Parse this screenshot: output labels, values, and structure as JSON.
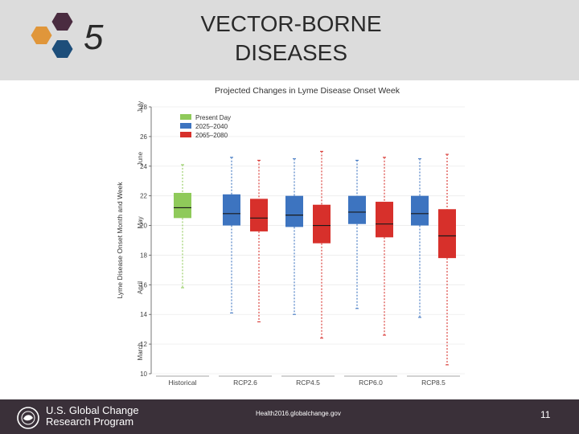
{
  "header": {
    "section_number": "5",
    "title_line1": "VECTOR-BORNE",
    "title_line2": "DISEASES"
  },
  "colors": {
    "header_bg": "#dcdcdc",
    "footer_bg": "#3a3039",
    "historical": "#8fca5a",
    "period_2025_2040": "#3d74c0",
    "period_2065_2080": "#d7302b"
  },
  "chart_data": {
    "type": "boxplot",
    "title": "Projected Changes in Lyme Disease Onset Week",
    "ylabel": "Lyme Disease Onset Month and Week",
    "ylim": [
      10,
      28
    ],
    "yticks": [
      "10",
      "12",
      "14",
      "16",
      "18",
      "20",
      "22",
      "24",
      "26",
      "28"
    ],
    "month_labels": [
      "March",
      "April",
      "May",
      "June",
      "July"
    ],
    "categories": [
      "Historical",
      "RCP2.6",
      "RCP4.5",
      "RCP6.0",
      "RCP8.5"
    ],
    "legend": {
      "position": "top-left",
      "entries": [
        "Present Day",
        "2025–2040",
        "2065–2080"
      ]
    },
    "series": [
      {
        "name": "Present Day",
        "color": "#8fca5a",
        "boxes": [
          {
            "category": "Historical",
            "whisker_low": 15.8,
            "q1": 20.5,
            "median": 21.2,
            "q3": 22.2,
            "whisker_high": 24.1
          }
        ]
      },
      {
        "name": "2025–2040",
        "color": "#3d74c0",
        "boxes": [
          {
            "category": "RCP2.6",
            "whisker_low": 14.1,
            "q1": 20.0,
            "median": 20.8,
            "q3": 22.1,
            "whisker_high": 24.6
          },
          {
            "category": "RCP4.5",
            "whisker_low": 14.0,
            "q1": 19.9,
            "median": 20.7,
            "q3": 22.0,
            "whisker_high": 24.5
          },
          {
            "category": "RCP6.0",
            "whisker_low": 14.4,
            "q1": 20.1,
            "median": 20.9,
            "q3": 22.0,
            "whisker_high": 24.4
          },
          {
            "category": "RCP8.5",
            "whisker_low": 13.8,
            "q1": 20.0,
            "median": 20.8,
            "q3": 22.0,
            "whisker_high": 24.5
          }
        ]
      },
      {
        "name": "2065–2080",
        "color": "#d7302b",
        "boxes": [
          {
            "category": "RCP2.6",
            "whisker_low": 13.5,
            "q1": 19.6,
            "median": 20.5,
            "q3": 21.8,
            "whisker_high": 24.4
          },
          {
            "category": "RCP4.5",
            "whisker_low": 12.4,
            "q1": 18.8,
            "median": 20.0,
            "q3": 21.4,
            "whisker_high": 25.0
          },
          {
            "category": "RCP6.0",
            "whisker_low": 12.6,
            "q1": 19.2,
            "median": 20.1,
            "q3": 21.6,
            "whisker_high": 24.6
          },
          {
            "category": "RCP8.5",
            "whisker_low": 10.6,
            "q1": 17.8,
            "median": 19.3,
            "q3": 21.1,
            "whisker_high": 24.8
          }
        ]
      }
    ]
  },
  "footer": {
    "org_line1": "U.S. Global Change",
    "org_line2": "Research Program",
    "url": "Health2016.globalchange.gov",
    "page_number": "11"
  }
}
